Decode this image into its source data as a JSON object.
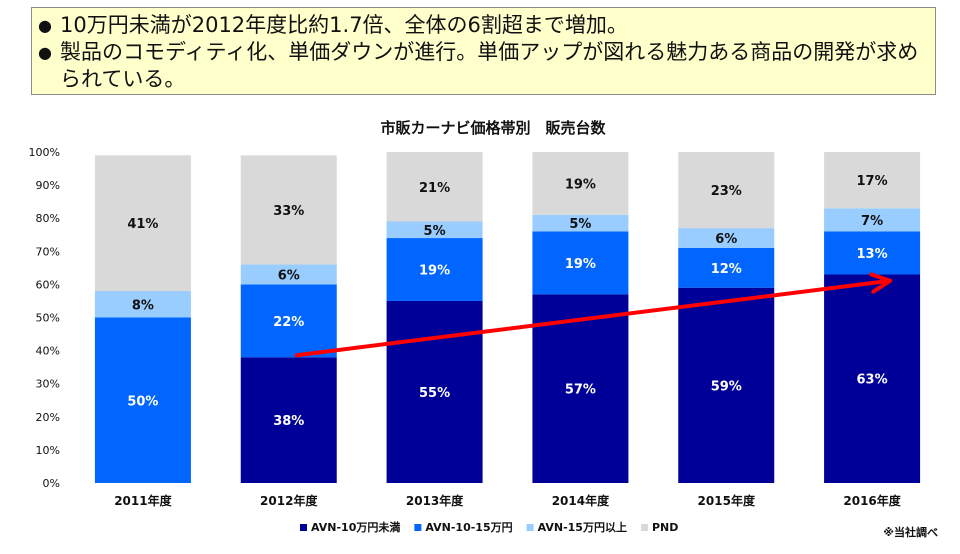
{
  "callout": {
    "bullets": [
      "10万円未満が2012年度比約1.7倍、全体の6割超まで増加。",
      "製品のコモディティ化、単価ダウンが進行。単価アップが図れる魅力ある商品の開発が求められている。"
    ]
  },
  "source_note": "※当社調べ",
  "chart_data": {
    "type": "bar",
    "stacked": true,
    "title": "市販カーナビ価格帯別　販売台数",
    "categories": [
      "2011年度",
      "2012年度",
      "2013年度",
      "2014年度",
      "2015年度",
      "2016年度"
    ],
    "ylim": [
      0,
      100
    ],
    "y_ticks": [
      "0%",
      "10%",
      "20%",
      "30%",
      "40%",
      "50%",
      "60%",
      "70%",
      "80%",
      "90%",
      "100%"
    ],
    "legend_position": "bottom",
    "series": [
      {
        "name": "AVN-10万円未満",
        "color": "#000099",
        "values": [
          0,
          38,
          55,
          57,
          59,
          63
        ],
        "labels": [
          "",
          "38%",
          "55%",
          "57%",
          "59%",
          "63%"
        ]
      },
      {
        "name": "AVN-10-15万円",
        "color": "#0066ff",
        "values": [
          50,
          22,
          19,
          19,
          12,
          13
        ],
        "labels": [
          "50%",
          "22%",
          "19%",
          "19%",
          "12%",
          "13%"
        ]
      },
      {
        "name": "AVN-15万円以上",
        "color": "#99ccff",
        "values": [
          8,
          6,
          5,
          5,
          6,
          7
        ],
        "labels": [
          "8%",
          "6%",
          "5%",
          "5%",
          "6%",
          "7%"
        ]
      },
      {
        "name": "PND",
        "color": "#d9d9d9",
        "values": [
          41,
          33,
          21,
          19,
          23,
          17
        ],
        "labels": [
          "41%",
          "33%",
          "21%",
          "19%",
          "23%",
          "17%"
        ]
      }
    ],
    "trend_arrow": {
      "color": "#ff0000",
      "from": {
        "category": "2012年度",
        "value": 38
      },
      "to": {
        "category": "2016年度",
        "value": 62
      }
    }
  }
}
